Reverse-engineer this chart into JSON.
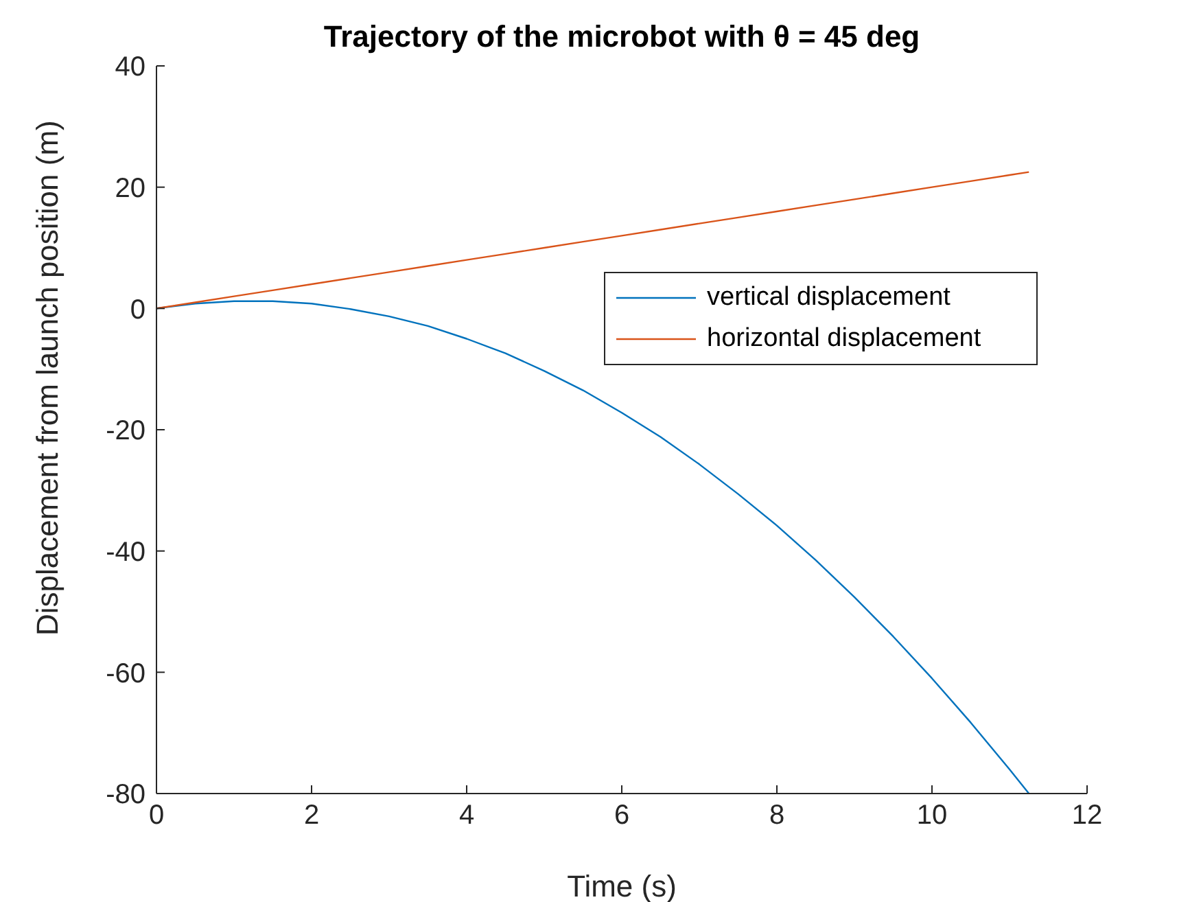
{
  "chart_data": {
    "type": "line",
    "title": "Trajectory of the microbot with θ = 45 deg",
    "xlabel": "Time (s)",
    "ylabel": "Displacement from launch position (m)",
    "x": [
      0,
      0.5,
      1,
      1.5,
      2,
      2.5,
      3,
      3.5,
      4,
      4.5,
      5,
      5.5,
      6,
      6.5,
      7,
      7.5,
      8,
      8.5,
      9,
      9.5,
      10,
      10.5,
      11,
      11.25
    ],
    "series": [
      {
        "name": "vertical displacement",
        "color": "#0072bd",
        "values": [
          0,
          0.8,
          1.2,
          1.2,
          0.8,
          -0.1,
          -1.3,
          -2.9,
          -5,
          -7.4,
          -10.3,
          -13.5,
          -17.2,
          -21.2,
          -25.7,
          -30.6,
          -35.8,
          -41.5,
          -47.6,
          -54.1,
          -61,
          -68.3,
          -76,
          -80
        ]
      },
      {
        "name": "horizontal displacement",
        "color": "#d95319",
        "values": [
          0,
          1,
          2,
          3,
          4,
          5,
          6,
          7,
          8,
          9,
          10,
          11,
          12,
          13,
          14,
          15,
          16,
          17,
          18,
          19,
          20,
          21,
          22,
          22.5
        ]
      }
    ],
    "xlim": [
      0,
      12
    ],
    "xticks": [
      0,
      2,
      4,
      6,
      8,
      10,
      12
    ],
    "ylim": [
      -80,
      40
    ],
    "yticks": [
      -80,
      -60,
      -40,
      -20,
      0,
      20,
      40
    ],
    "grid": false,
    "legend": "right",
    "marker": "none",
    "line_style": "solid"
  }
}
